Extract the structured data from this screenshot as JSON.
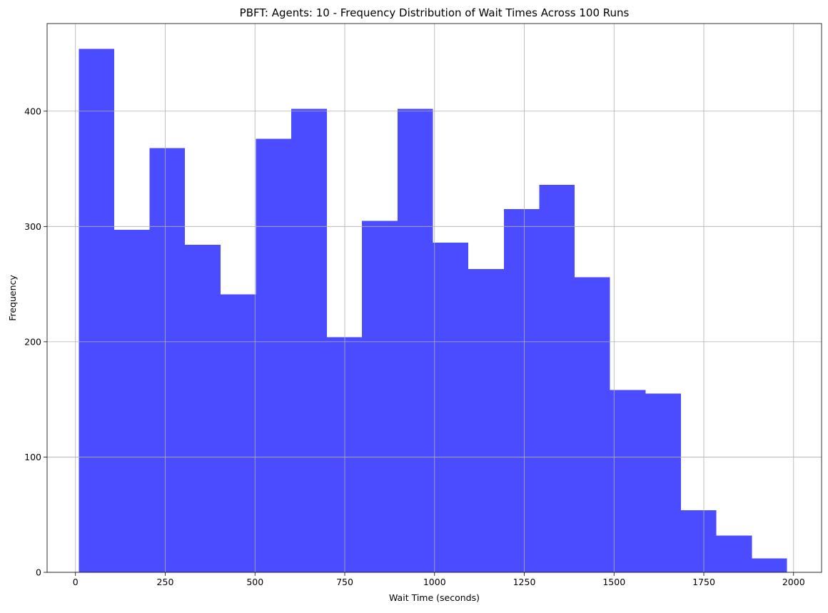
{
  "chart_data": {
    "type": "bar",
    "subtype": "histogram",
    "title": "PBFT: Agents: 10 - Frequency Distribution of Wait Times Across 100 Runs",
    "xlabel": "Wait Time (seconds)",
    "ylabel": "Frequency",
    "xlim": [
      -79,
      2078
    ],
    "ylim": [
      0,
      476
    ],
    "xticks": [
      0,
      250,
      500,
      750,
      1000,
      1250,
      1500,
      1750,
      2000
    ],
    "yticks": [
      0,
      100,
      200,
      300,
      400
    ],
    "grid": true,
    "bar_color": "#4b4bff",
    "bin_edges": [
      9,
      108,
      206,
      305,
      404,
      502,
      601,
      700,
      798,
      897,
      996,
      1094,
      1193,
      1292,
      1390,
      1489,
      1588,
      1686,
      1785,
      1884,
      1982
    ],
    "values": [
      454,
      297,
      368,
      284,
      241,
      376,
      402,
      204,
      305,
      402,
      286,
      263,
      315,
      336,
      256,
      158,
      155,
      54,
      32,
      12
    ]
  }
}
